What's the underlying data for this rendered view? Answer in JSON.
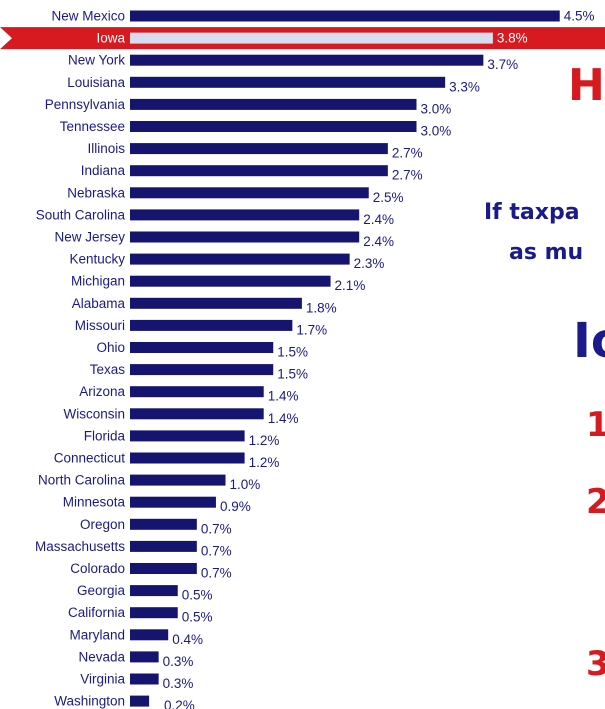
{
  "chart_data": {
    "type": "bar",
    "orientation": "horizontal",
    "categories": [
      "New Mexico",
      "Iowa",
      "New York",
      "Louisiana",
      "Pennsylvania",
      "Tennessee",
      "Illinois",
      "Indiana",
      "Nebraska",
      "South Carolina",
      "New Jersey",
      "Kentucky",
      "Michigan",
      "Alabama",
      "Missouri",
      "Ohio",
      "Texas",
      "Arizona",
      "Wisconsin",
      "Florida",
      "Connecticut",
      "North Carolina",
      "Minnesota",
      "Oregon",
      "Massachusetts",
      "Colorado",
      "Georgia",
      "California",
      "Maryland",
      "Nevada",
      "Virginia",
      "Washington"
    ],
    "values": [
      4.5,
      3.8,
      3.7,
      3.3,
      3.0,
      3.0,
      2.7,
      2.7,
      2.5,
      2.4,
      2.4,
      2.3,
      2.1,
      1.8,
      1.7,
      1.5,
      1.5,
      1.4,
      1.4,
      1.2,
      1.2,
      1.0,
      0.9,
      0.7,
      0.7,
      0.7,
      0.5,
      0.5,
      0.4,
      0.3,
      0.3,
      0.2
    ],
    "value_labels": [
      "4.5%",
      "3.8%",
      "3.7%",
      "3.3%",
      "3.0%",
      "3.0%",
      "2.7%",
      "2.7%",
      "2.5%",
      "2.4%",
      "2.4%",
      "2.3%",
      "2.1%",
      "1.8%",
      "1.7%",
      "1.5%",
      "1.5%",
      "1.4%",
      "1.4%",
      "1.2%",
      "1.2%",
      "1.0%",
      "0.9%",
      "0.7%",
      "0.7%",
      "0.7%",
      "0.5%",
      "0.5%",
      "0.4%",
      "0.3%",
      "0.3%",
      "0.2%"
    ],
    "highlight": "Iowa",
    "colors": {
      "bar": "#151570",
      "highlight_band": "#d71920",
      "highlight_bar": "#d8dcee",
      "label": "#1a1a8a",
      "highlight_text": "#ffffff"
    }
  },
  "side_panel": {
    "heading_fragment": "H",
    "subtext_line1": "If taxpa",
    "subtext_line2": "as mu",
    "state_fragment": "Io",
    "list_numbers": [
      "1",
      "2",
      "3"
    ]
  }
}
